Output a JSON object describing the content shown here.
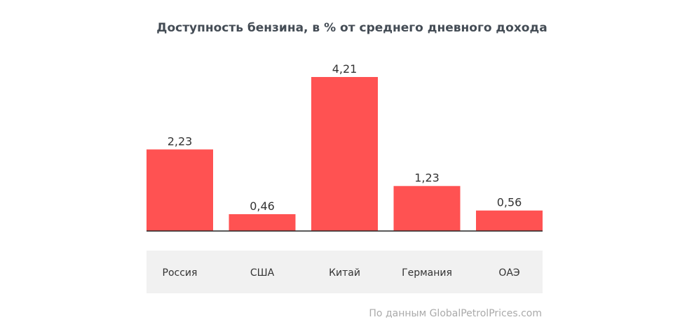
{
  "chart_data": {
    "type": "bar",
    "title": "Доступность бензина, в % от среднего дневного дохода",
    "categories": [
      "Россия",
      "США",
      "Китай",
      "Германия",
      "ОАЭ"
    ],
    "values": [
      2.23,
      0.46,
      4.21,
      1.23,
      0.56
    ],
    "value_labels": [
      "2,23",
      "0,46",
      "4,21",
      "1,23",
      "0,56"
    ],
    "xlabel": "",
    "ylabel": "",
    "ylim": [
      0,
      4.21
    ],
    "grid": false,
    "legend": "none",
    "colors": {
      "bar": "#ff5252",
      "axis": "#222222",
      "category_band": "#f1f1f1"
    }
  },
  "source": "По данным GlobalPetrolPrices.com"
}
